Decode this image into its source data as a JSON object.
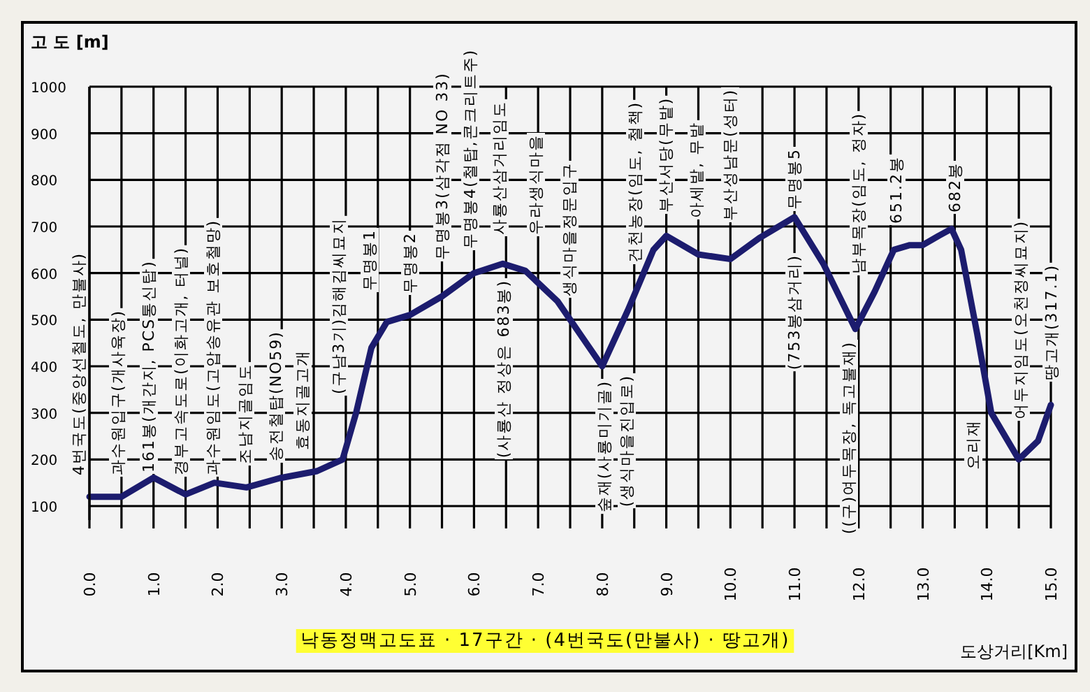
{
  "chart_data": {
    "type": "line",
    "title": "낙동정맥고도표 · 17구간 · (4번국도(만불사) · 땅고개)",
    "xlabel": "도상거리[Km]",
    "ylabel": "고 도 [m]",
    "xlim": [
      0,
      15
    ],
    "ylim": [
      70,
      1000
    ],
    "xticks": [
      {
        "value": 0,
        "label": "0.0"
      },
      {
        "value": 0.5,
        "label": null
      },
      {
        "value": 1,
        "label": "1.0"
      },
      {
        "value": 1.5,
        "label": null
      },
      {
        "value": 2,
        "label": "2.0"
      },
      {
        "value": 2.5,
        "label": null
      },
      {
        "value": 3,
        "label": "3.0"
      },
      {
        "value": 3.5,
        "label": null
      },
      {
        "value": 4,
        "label": "4.0"
      },
      {
        "value": 4.5,
        "label": null
      },
      {
        "value": 5,
        "label": "5.0"
      },
      {
        "value": 5.5,
        "label": null
      },
      {
        "value": 6,
        "label": "6.0"
      },
      {
        "value": 6.5,
        "label": null
      },
      {
        "value": 7,
        "label": "7.0"
      },
      {
        "value": 7.5,
        "label": null
      },
      {
        "value": 8,
        "label": "8.0"
      },
      {
        "value": 8.5,
        "label": null
      },
      {
        "value": 9,
        "label": "9.0"
      },
      {
        "value": 9.5,
        "label": null
      },
      {
        "value": 10,
        "label": "10.0"
      },
      {
        "value": 10.5,
        "label": null
      },
      {
        "value": 11,
        "label": "11.0"
      },
      {
        "value": 11.5,
        "label": null
      },
      {
        "value": 12,
        "label": "12.0"
      },
      {
        "value": 12.5,
        "label": null
      },
      {
        "value": 13,
        "label": "13.0"
      },
      {
        "value": 13.5,
        "label": null
      },
      {
        "value": 14,
        "label": "14.0"
      },
      {
        "value": 14.5,
        "label": null
      },
      {
        "value": 15,
        "label": "15.0"
      }
    ],
    "yticks": [
      100,
      200,
      300,
      400,
      500,
      600,
      700,
      800,
      900,
      1000
    ],
    "grid": true,
    "marker": "none",
    "line_style": "solid",
    "series": [
      {
        "color": "#1c1c6e",
        "x": [
          0,
          0.5,
          1.0,
          1.5,
          1.95,
          2.45,
          2.97,
          3.55,
          3.95,
          4.16,
          4.4,
          4.64,
          5.0,
          5.5,
          6.0,
          6.45,
          6.8,
          7.3,
          7.7,
          8.0,
          8.4,
          8.8,
          9.0,
          9.5,
          10.0,
          10.45,
          11.0,
          11.45,
          11.95,
          12.25,
          12.55,
          12.8,
          13.0,
          13.25,
          13.45,
          13.6,
          13.85,
          14.07,
          14.5,
          14.8,
          15.0
        ],
        "values": [
          120,
          120,
          161,
          125,
          150,
          140,
          160,
          175,
          200,
          300,
          440,
          495,
          510,
          550,
          600,
          620,
          605,
          540,
          460,
          400,
          520,
          650,
          680,
          640,
          630,
          675,
          720,
          620,
          480,
          560,
          650,
          660,
          660,
          680,
          695,
          650,
          470,
          300,
          200,
          240,
          317
        ]
      }
    ],
    "annotations": [
      "4번국도(중앙선철도, 만불사)",
      "과수원입구(개사육장)",
      "161봉(개간지, PCS통신탑)",
      "경부고속도로(이화고개, 터널)",
      "과수원임도(고압송유관 보호철망)",
      "조남지골임도",
      "송전철탑(NO59)",
      "효동지골고개",
      "(구남3기)김해김씨묘지",
      "무명봉1",
      "무명봉2",
      "무명봉3(삼각점 NO 33)",
      "무명봉4(철탑,콘크리트주)",
      "사룡산삼거리임도",
      "(사룡산 정상은 683봉)",
      "우라생식마을",
      "생식마을정문입구",
      "숲재(사룡미기골)",
      "(생식마을진입로)",
      "건천농장(임도, 철책)",
      "부산서당(무밭)",
      "아세밭, 무밭",
      "부산성남문(성터)",
      "무명봉5",
      "(753봉삼거리)",
      "남부목장(임도, 정자)",
      "((구)여두목장, 독고불재)",
      "651.2봉",
      "682봉",
      "오리재",
      "어두지임도(오천정씨묘지)",
      "땅고개(317.1)"
    ]
  }
}
